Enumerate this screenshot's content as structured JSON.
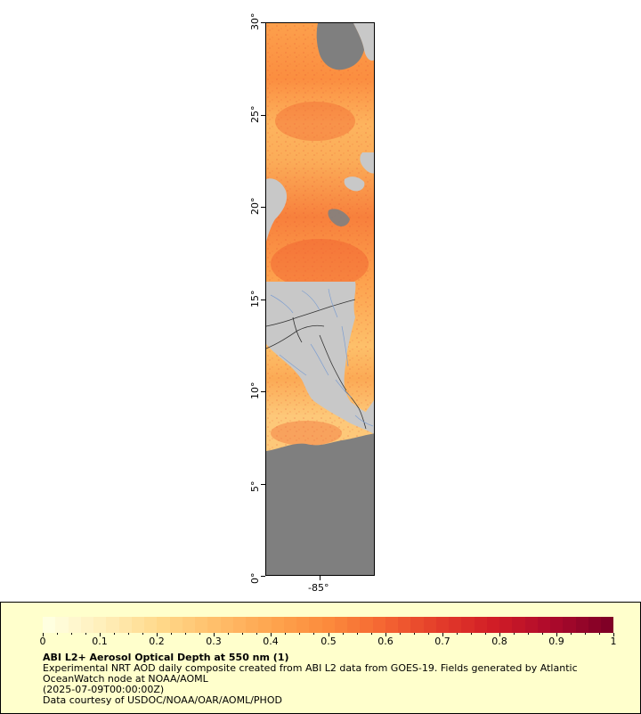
{
  "map": {
    "lat_labels": [
      "0°",
      "5°",
      "10°",
      "15°",
      "20°",
      "25°",
      "30°"
    ],
    "lon_label": "-85°",
    "lat_range": [
      0,
      30
    ],
    "colors": {
      "no_data_ocean": "#808080",
      "land": "#c8c8c8",
      "borders": "#333333",
      "rivers": "#7f9fd0"
    }
  },
  "legend": {
    "colorbar_ticks": [
      "0",
      "0.1",
      "0.2",
      "0.3",
      "0.4",
      "0.5",
      "0.6",
      "0.7",
      "0.8",
      "0.9",
      "1"
    ],
    "colorbar_colors": [
      "#ffffe0",
      "#ffeeb8",
      "#ffd889",
      "#ffbe6a",
      "#fea44e",
      "#fc8a3c",
      "#f46532",
      "#e33b2a",
      "#d01c26",
      "#ad0a2c",
      "#800026"
    ],
    "title": "ABI L2+ Aerosol Optical Depth at 550 nm (1)",
    "line1": "Experimental NRT AOD daily composite created from ABI L2 data from GOES-19. Fields generated by Atlantic",
    "line2": "OceanWatch node at NOAA/AOML",
    "line3": "(2025-07-09T00:00:00Z)",
    "line4": "Data courtesy of USDOC/NOAA/OAR/AOML/PHOD"
  }
}
